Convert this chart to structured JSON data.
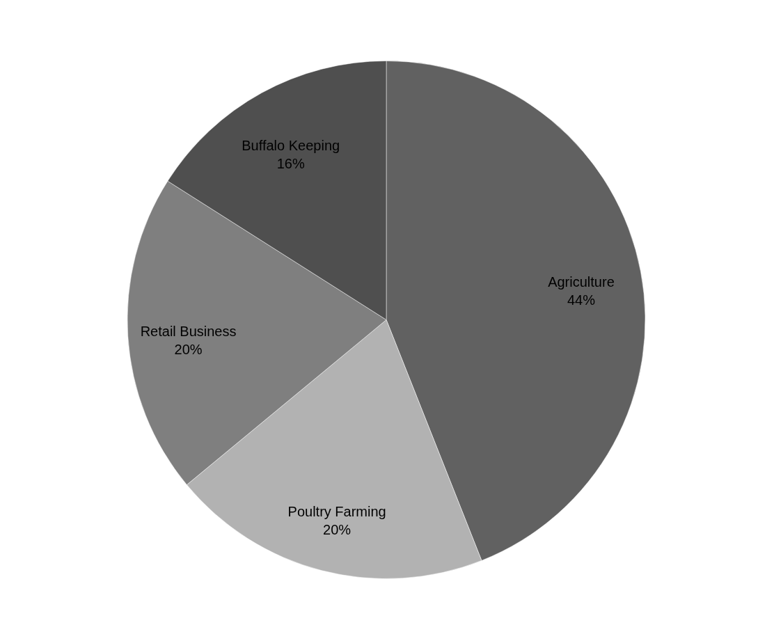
{
  "chart_data": {
    "type": "pie",
    "categories": [
      "Agriculture",
      "Poultry Farming",
      "Retail Business",
      "Buffalo Keeping"
    ],
    "values": [
      44,
      20,
      20,
      16
    ],
    "value_labels": [
      "44%",
      "20%",
      "20%",
      "16%"
    ],
    "colors": [
      "#616161",
      "#b2b2b2",
      "#7f7f7f",
      "#4f4f4f"
    ],
    "legend": false
  }
}
